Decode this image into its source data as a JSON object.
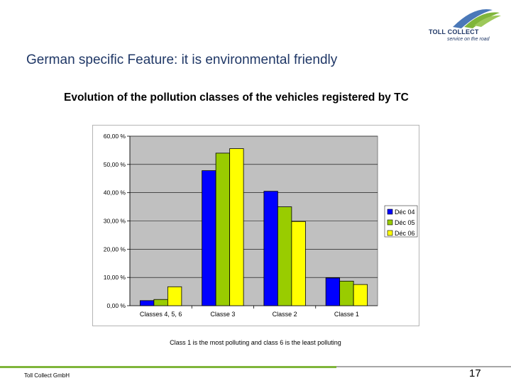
{
  "brand": {
    "name": "TOLL COLLECT",
    "slogan": "service on the road",
    "colors": {
      "navy": "#1f3766",
      "green": "#7fb53a",
      "blue": "#4a78b8"
    }
  },
  "slide": {
    "title": "German specific Feature: it is environmental friendly"
  },
  "chart_data": {
    "type": "bar",
    "title": "Evolution of the pollution classes of the vehicles registered by TC",
    "categories": [
      "Classes 4, 5, 6",
      "Classe 3",
      "Classe 2",
      "Classe 1"
    ],
    "series": [
      {
        "name": "Déc 04",
        "color": "#0000ff",
        "values": [
          1.8,
          47.8,
          40.5,
          9.8
        ]
      },
      {
        "name": "Déc 05",
        "color": "#99cc00",
        "values": [
          2.2,
          54.0,
          35.0,
          8.7
        ]
      },
      {
        "name": "Déc 06",
        "color": "#ffff00",
        "values": [
          6.7,
          55.6,
          29.8,
          7.5
        ]
      }
    ],
    "y_ticks": [
      "60,00 %",
      "50,00 %",
      "40,00 %",
      "30,00 %",
      "20,00 %",
      "10,00 %",
      "0,00 %"
    ],
    "y_tick_values": [
      60,
      50,
      40,
      30,
      20,
      10,
      0
    ],
    "ylim": [
      0,
      60
    ],
    "grid": true,
    "plot_background": "#c0c0c0",
    "legend_position": "right"
  },
  "footnote": "Class 1 is the most polluting and class 6 is the least polluting",
  "footer": {
    "company": "Toll Collect GmbH",
    "page_number": "17"
  }
}
